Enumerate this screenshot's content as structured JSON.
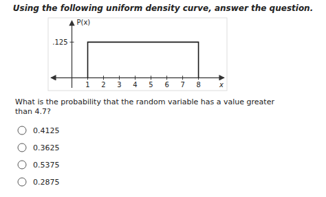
{
  "chart_data": {
    "type": "line",
    "title": "Using the following uniform density curve, answer the question.",
    "x_label": "x",
    "y_label": "P(x)",
    "x": [
      1,
      1,
      8,
      8
    ],
    "values": [
      0,
      0.125,
      0.125,
      0
    ],
    "color": "#1a1a1a",
    "xlim": [
      -1.5,
      9.8
    ],
    "ylim": [
      -0.045,
      0.21
    ],
    "xticks": [
      1,
      2,
      3,
      4,
      5,
      6,
      7,
      8
    ],
    "yticks": [
      {
        "value": 0.125,
        "label": ".125"
      }
    ],
    "question": "What is the probability that the random variable has a value greater\nthan 4.7?",
    "options": [
      "0.4125",
      "0.3625",
      "0.5375",
      "0.2875"
    ]
  }
}
